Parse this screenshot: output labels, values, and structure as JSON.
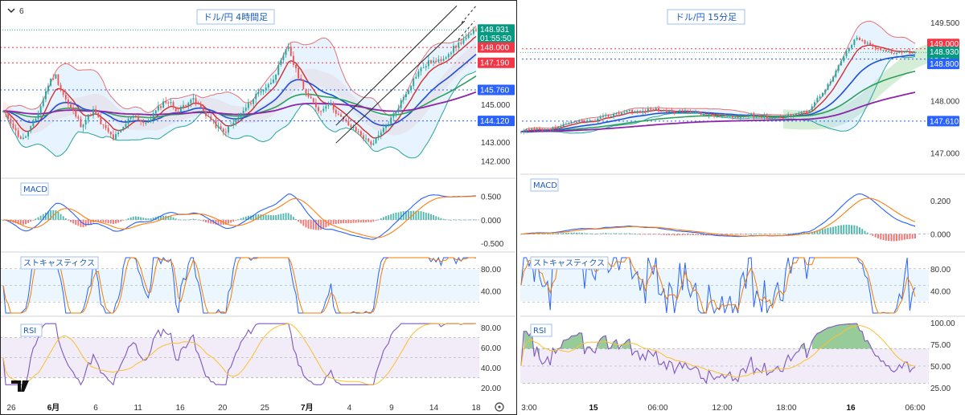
{
  "header": {
    "interval_label": "6"
  },
  "chart_data": [
    {
      "type": "candlestick",
      "title": "ドル/円 4時間足",
      "price_axis": {
        "ticks": [
          "142.000",
          "143.000",
          "145.000"
        ],
        "range": [
          141.6,
          150.0
        ]
      },
      "x_ticks": [
        "26",
        "6月",
        "6",
        "11",
        "16",
        "20",
        "25",
        "7月",
        "4",
        "9",
        "14",
        "18"
      ],
      "price_tags": [
        {
          "value": "148.931",
          "countdown": "01:55:50",
          "color": "#089981"
        },
        {
          "value": "148.000",
          "color": "#f23645"
        },
        {
          "value": "147.190",
          "color": "#f23645"
        },
        {
          "value": "145.760",
          "color": "#2962ff"
        },
        {
          "value": "144.120",
          "color": "#2962ff"
        }
      ],
      "hlines": [
        148.0,
        147.19,
        145.76,
        144.12
      ],
      "closes": [
        144.6,
        144.2,
        143.5,
        143.1,
        143.6,
        144.2,
        145.1,
        146.1,
        146.6,
        145.7,
        145.0,
        144.5,
        143.9,
        144.3,
        144.7,
        144.0,
        143.6,
        143.2,
        143.5,
        144.0,
        144.5,
        144.2,
        143.9,
        144.4,
        144.8,
        145.2,
        145.0,
        144.6,
        145.0,
        145.3,
        145.0,
        144.6,
        144.2,
        143.8,
        143.5,
        143.8,
        144.2,
        144.6,
        145.0,
        145.5,
        145.8,
        146.0,
        146.6,
        147.3,
        148.1,
        146.9,
        146.2,
        145.4,
        145.0,
        144.6,
        145.1,
        144.8,
        144.3,
        144.0,
        143.7,
        143.5,
        143.1,
        142.9,
        143.3,
        143.8,
        144.3,
        144.9,
        145.5,
        146.1,
        146.7,
        147.0,
        147.3,
        147.2,
        147.5,
        147.8,
        148.1,
        148.4,
        148.6,
        148.931
      ],
      "macd": {
        "ticks": [
          "0.500",
          "0.000",
          "-0.500"
        ],
        "range": [
          -0.65,
          0.75
        ]
      },
      "stochastics": {
        "title": "ストキャスティクス",
        "ticks": [
          "80.00",
          "40.00"
        ]
      },
      "rsi": {
        "title": "RSI",
        "ticks": [
          "80.00",
          "60.00",
          "40.00",
          "20.00"
        ]
      }
    },
    {
      "type": "candlestick",
      "title": "ドル/円 15分足",
      "price_axis": {
        "ticks": [
          "149.500",
          "148.000",
          "147.000"
        ],
        "range": [
          146.7,
          149.75
        ]
      },
      "x_ticks": [
        "3:00",
        "15",
        "06:00",
        "12:00",
        "18:00",
        "16",
        "06:00"
      ],
      "price_tags": [
        {
          "value": "149.000",
          "color": "#f23645"
        },
        {
          "value": "148.930",
          "countdown": "10:50",
          "color": "#089981"
        },
        {
          "value": "148.800",
          "color": "#2962ff"
        },
        {
          "value": "147.610",
          "color": "#2962ff"
        }
      ],
      "hlines": [
        149.0,
        148.8,
        147.61
      ],
      "closes": [
        147.4,
        147.45,
        147.42,
        147.5,
        147.55,
        147.62,
        147.6,
        147.7,
        147.75,
        147.82,
        147.78,
        147.85,
        147.8,
        147.78,
        147.82,
        147.75,
        147.72,
        147.7,
        147.68,
        147.72,
        147.7,
        147.68,
        147.7,
        147.75,
        147.8,
        148.1,
        148.4,
        148.85,
        149.2,
        149.1,
        148.98,
        148.93,
        148.95,
        148.93
      ],
      "macd": {
        "ticks": [
          "0.200",
          "0.000"
        ],
        "range": [
          -0.06,
          0.32
        ]
      },
      "stochastics": {
        "title": "ストキャスティクス",
        "ticks": [
          "80.00",
          "40.00"
        ]
      },
      "rsi": {
        "title": "RSI",
        "ticks": [
          "100.00",
          "75.00",
          "50.00",
          "25.00"
        ]
      }
    }
  ]
}
